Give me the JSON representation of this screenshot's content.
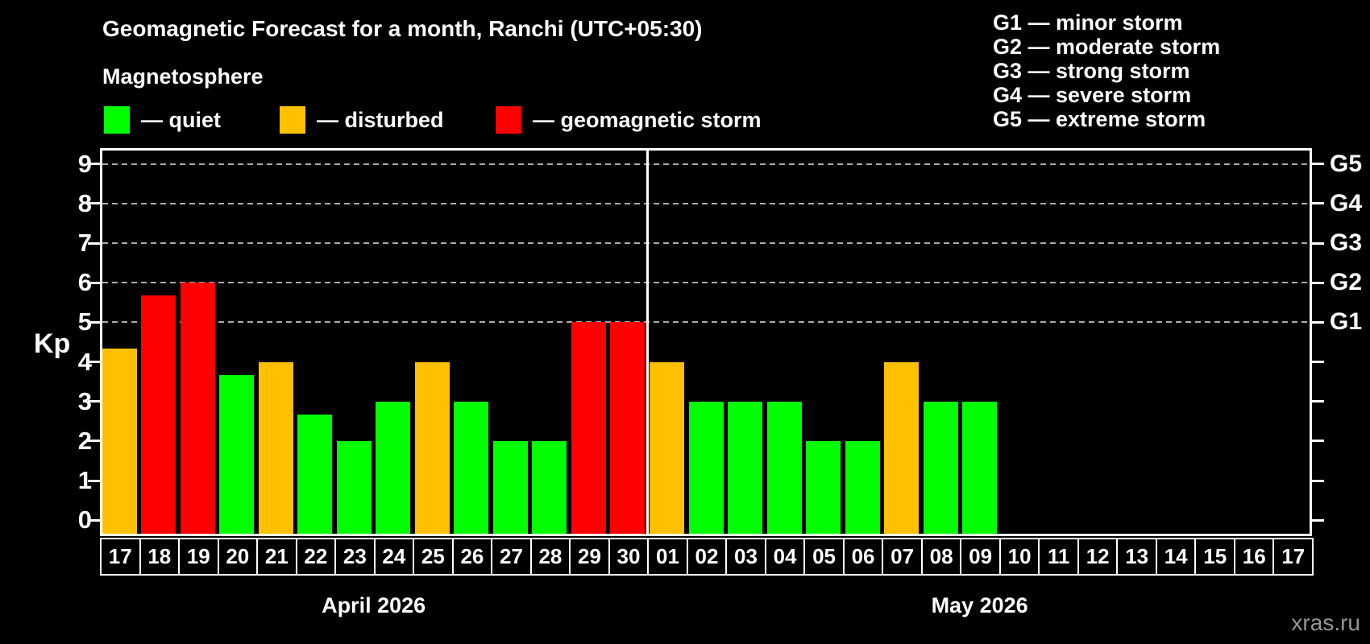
{
  "title": "Geomagnetic Forecast for a month, Ranchi (UTC+05:30)",
  "subtitle": "Magnetosphere",
  "condition_legend": [
    {
      "state": "quiet",
      "label": "— quiet"
    },
    {
      "state": "disturbed",
      "label": "— disturbed"
    },
    {
      "state": "storm",
      "label": "— geomagnetic storm"
    }
  ],
  "storm_scale_legend": [
    "G1 — minor storm",
    "G2 — moderate storm",
    "G3 — strong storm",
    "G4 — severe storm",
    "G5 — extreme storm"
  ],
  "watermark": "xras.ru",
  "colors": {
    "quiet": "#00FF00",
    "disturbed": "#FFC000",
    "storm": "#FF0000",
    "axis": "#FFFFFF",
    "gridline": "#ABABAB",
    "background": "#000000",
    "watermark": "#969696"
  },
  "chart_data": {
    "type": "bar",
    "title": "Geomagnetic Forecast for a month, Ranchi (UTC+05:30)",
    "ylabel": "Kp",
    "ylim": [
      0,
      9
    ],
    "y_ticks": [
      0,
      1,
      2,
      3,
      4,
      5,
      6,
      7,
      8,
      9
    ],
    "gridlines_at": [
      5,
      6,
      7,
      8,
      9
    ],
    "right_axis_labels": [
      {
        "value": 5,
        "label": "G1"
      },
      {
        "value": 6,
        "label": "G2"
      },
      {
        "value": 7,
        "label": "G3"
      },
      {
        "value": 8,
        "label": "G4"
      },
      {
        "value": 9,
        "label": "G5"
      }
    ],
    "grid": "dashed horizontal lines at storm levels only",
    "legend_position": "top-left",
    "month_spans": [
      {
        "label": "April 2026",
        "start": 0,
        "count": 14
      },
      {
        "label": "May 2026",
        "start": 14,
        "count": 17
      }
    ],
    "categories": [
      "17",
      "18",
      "19",
      "20",
      "21",
      "22",
      "23",
      "24",
      "25",
      "26",
      "27",
      "28",
      "29",
      "30",
      "01",
      "02",
      "03",
      "04",
      "05",
      "06",
      "07",
      "08",
      "09",
      "10",
      "11",
      "12",
      "13",
      "14",
      "15",
      "16",
      "17"
    ],
    "values": [
      4.33,
      5.67,
      6,
      3.67,
      4,
      2.67,
      2,
      3,
      4,
      3,
      2,
      2,
      5,
      5,
      4,
      3,
      3,
      3,
      2,
      2,
      4,
      3,
      3,
      null,
      null,
      null,
      null,
      null,
      null,
      null,
      null
    ],
    "states": [
      "disturbed",
      "storm",
      "storm",
      "quiet",
      "disturbed",
      "quiet",
      "quiet",
      "quiet",
      "disturbed",
      "quiet",
      "quiet",
      "quiet",
      "storm",
      "storm",
      "disturbed",
      "quiet",
      "quiet",
      "quiet",
      "quiet",
      "quiet",
      "disturbed",
      "quiet",
      "quiet",
      null,
      null,
      null,
      null,
      null,
      null,
      null,
      null
    ]
  }
}
